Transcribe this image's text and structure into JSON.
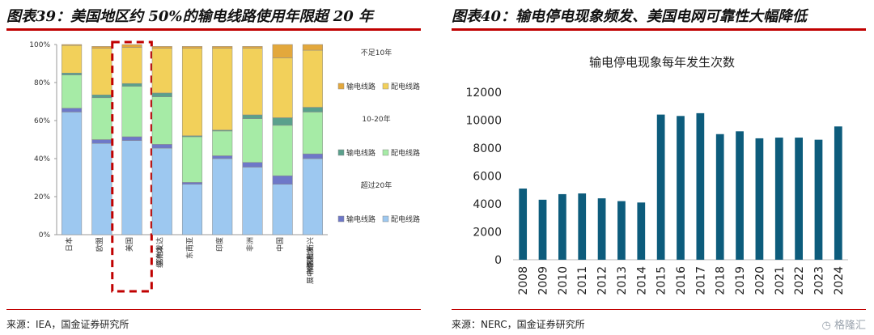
{
  "left": {
    "title": "图表39：美国地区约 50%的输电线路使用年限超 20 年",
    "source": "来源：IEA，国金证券研究所"
  },
  "right": {
    "title": "图表40：输电停电现象频发、美国电网可靠性大幅降低",
    "source": "来源：NERC，国金证券研究所"
  },
  "watermark": "格隆汇",
  "colors": {
    "rule": "#c00000",
    "under20_distribution": "#9dc8f0",
    "under20_transmission": "#6e78c8",
    "mid_distribution": "#a6eba6",
    "mid_transmission": "#5aa08c",
    "over20_distribution": "#f2d05a",
    "over20_transmission": "#e3a83c",
    "bar": "#0d5c7c",
    "highlight": "#c00000"
  },
  "chart_data": [
    {
      "type": "bar",
      "stacked": true,
      "percent": true,
      "categories": [
        "日本",
        "欧盟",
        "美国",
        "其他发达经济体",
        "东南亚",
        "印度",
        "非洲",
        "中国",
        "其他新兴市场和发展中经济体"
      ],
      "highlight_category": "美国",
      "ylim": [
        0,
        100
      ],
      "yticks": [
        "0%",
        "20%",
        "40%",
        "60%",
        "80%",
        "100%"
      ],
      "legend_groups": [
        {
          "label": "不足10年",
          "items": [
            "输电线路",
            "配电线路"
          ]
        },
        {
          "label": "10-20年",
          "items": [
            "输电线路",
            "配电线路"
          ]
        },
        {
          "label": "超过20年",
          "items": [
            "输电线路",
            "配电线路"
          ]
        }
      ],
      "series": [
        {
          "name": "配电线路",
          "group": "超过20年",
          "color_key": "under20_distribution",
          "values": [
            64.5,
            48,
            49.5,
            45.5,
            26.5,
            40,
            35.5,
            26.5,
            40
          ]
        },
        {
          "name": "输电线路",
          "group": "超过20年",
          "color_key": "under20_transmission",
          "values": [
            2,
            2,
            2,
            2,
            1,
            1.5,
            2.5,
            4.5,
            2.5
          ]
        },
        {
          "name": "配电线路",
          "group": "10-20年",
          "color_key": "mid_distribution",
          "values": [
            17.5,
            22,
            26.5,
            25,
            24,
            13,
            23,
            26.5,
            22
          ]
        },
        {
          "name": "输电线路",
          "group": "10-20年",
          "color_key": "mid_transmission",
          "values": [
            1,
            1.5,
            1.5,
            2,
            0.5,
            0.5,
            2,
            4,
            2.5
          ]
        },
        {
          "name": "配电线路",
          "group": "不足10年",
          "color_key": "over20_distribution",
          "values": [
            14.5,
            24.5,
            19,
            23.5,
            46,
            43,
            35,
            31.5,
            30
          ]
        },
        {
          "name": "输电线路",
          "group": "不足10年",
          "color_key": "over20_transmission",
          "values": [
            0.5,
            1,
            1.5,
            1,
            1,
            1,
            1,
            7,
            3
          ]
        }
      ]
    },
    {
      "type": "bar",
      "title": "输电停电现象每年发生次数",
      "categories": [
        "2008",
        "2009",
        "2010",
        "2011",
        "2012",
        "2013",
        "2014",
        "2015",
        "2016",
        "2017",
        "2018",
        "2019",
        "2020",
        "2021",
        "2022",
        "2023",
        "2024"
      ],
      "values": [
        5100,
        4300,
        4700,
        4750,
        4400,
        4200,
        4100,
        10400,
        10300,
        10500,
        9000,
        9200,
        8700,
        8750,
        8750,
        8600,
        9550
      ],
      "ylim": [
        0,
        12000
      ],
      "yticks": [
        "0",
        "2000",
        "4000",
        "6000",
        "8000",
        "10000",
        "12000"
      ]
    }
  ]
}
